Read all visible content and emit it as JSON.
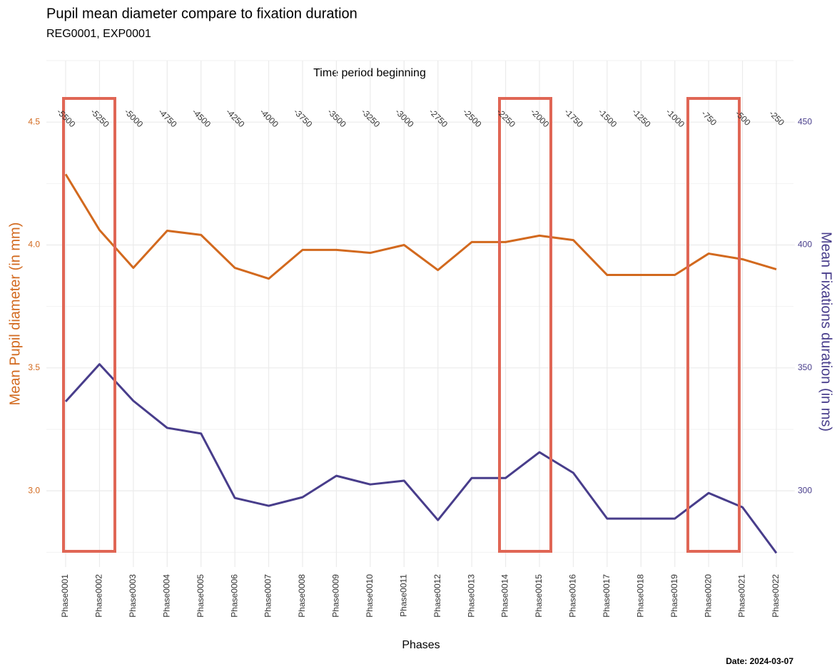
{
  "chart_data": {
    "type": "line",
    "title": "Pupil mean diameter compare to fixation duration",
    "subtitle": "REG0001, EXP0001",
    "x_label": "Phases",
    "top_axis_label": "Time period beginning",
    "y_label": "Mean Pupil diameter (in mm)",
    "y2_label": "Mean Fixations duration (in ms)",
    "caption": "Date: 2024-03-07",
    "categories": [
      "Phase0001",
      "Phase0002",
      "Phase0003",
      "Phase0004",
      "Phase0005",
      "Phase0006",
      "Phase0007",
      "Phase0008",
      "Phase0009",
      "Phase0010",
      "Phase0011",
      "Phase0012",
      "Phase0013",
      "Phase0014",
      "Phase0015",
      "Phase0016",
      "Phase0017",
      "Phase0018",
      "Phase0019",
      "Phase0020",
      "Phase0021",
      "Phase0022"
    ],
    "top_categories": [
      -5500,
      -5250,
      -5000,
      -4750,
      -4500,
      -4250,
      -4000,
      -3750,
      -3500,
      -3250,
      -3000,
      -2750,
      -2500,
      -2250,
      -2000,
      -1750,
      -1500,
      -1250,
      -1000,
      -750,
      -500,
      -250
    ],
    "series": [
      {
        "name": "Mean Pupil diameter",
        "color": "#d2691e",
        "axis": "y",
        "values": [
          4.288,
          4.061,
          3.907,
          4.058,
          4.041,
          3.907,
          3.863,
          3.98,
          3.98,
          3.968,
          4.0,
          3.898,
          4.012,
          4.012,
          4.038,
          4.02,
          3.878,
          3.878,
          3.878,
          3.965,
          3.942,
          3.901
        ]
      },
      {
        "name": "Mean Fixations duration",
        "color": "#483d8b",
        "axis": "y2",
        "values": [
          336.3,
          351.5,
          336.6,
          325.6,
          323.3,
          297.1,
          293.9,
          297.4,
          306.1,
          302.6,
          304.1,
          288.1,
          305.2,
          305.2,
          315.7,
          307.3,
          288.7,
          288.7,
          288.7,
          299.1,
          293.3,
          274.7
        ]
      }
    ],
    "ylim": [
      2.69,
      4.75
    ],
    "yticks": [
      {
        "value": 3,
        "label": "3.0"
      },
      3.5,
      {
        "value": 4,
        "label": "4.0"
      },
      4.5
    ],
    "y2lim": [
      269,
      475
    ],
    "y2ticks": [
      300,
      350,
      400,
      450
    ],
    "grid": true
  }
}
